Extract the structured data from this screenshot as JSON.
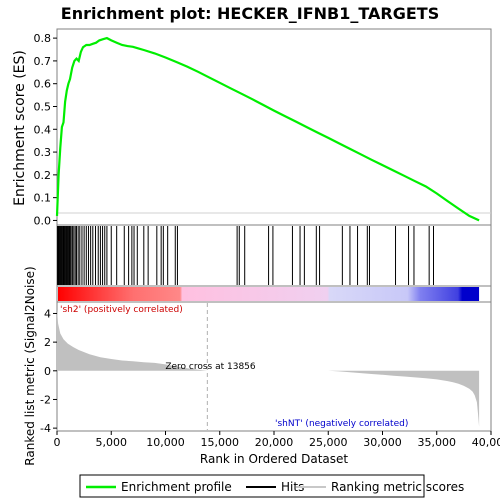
{
  "chart_data": {
    "type": "line",
    "title": "Enrichment plot: HECKER_IFNB1_TARGETS",
    "xlabel": "Rank in Ordered Dataset",
    "top_ylabel": "Enrichment score (ES)",
    "bottom_ylabel": "Ranked list metric (Signal2Noise)",
    "xlim": [
      0,
      40000
    ],
    "x_ticks": [
      0,
      5000,
      10000,
      15000,
      20000,
      25000,
      30000,
      35000,
      40000
    ],
    "x_tick_labels": [
      "0",
      "5,000",
      "10,000",
      "15,000",
      "20,000",
      "25,000",
      "30,000",
      "35,000",
      "40,000"
    ],
    "es_ylim": [
      -0.02,
      0.84
    ],
    "es_ticks": [
      0.0,
      0.1,
      0.2,
      0.3,
      0.4,
      0.5,
      0.6,
      0.7,
      0.8
    ],
    "es_tick_labels": [
      "0.0",
      "0.1",
      "0.2",
      "0.3",
      "0.4",
      "0.5",
      "0.6",
      "0.7",
      "0.8"
    ],
    "metric_ylim": [
      -4.2,
      4.8
    ],
    "metric_ticks": [
      -4,
      -2,
      0,
      2,
      4
    ],
    "metric_tick_labels": [
      "-4",
      "-2",
      "0",
      "2",
      "4"
    ],
    "series": [
      {
        "name": "Enrichment profile",
        "color": "#00ee00",
        "x": [
          0,
          150,
          300,
          450,
          600,
          750,
          900,
          1050,
          1200,
          1400,
          1600,
          1800,
          2000,
          2200,
          2400,
          2700,
          3000,
          3300,
          3600,
          3900,
          4200,
          4600,
          5000,
          5500,
          6000,
          6500,
          7000,
          7500,
          8000,
          9000,
          10000,
          11000,
          12000,
          13000,
          14000,
          15000,
          16000,
          17000,
          18000,
          19000,
          20000,
          21000,
          22000,
          23000,
          24000,
          25000,
          26000,
          27000,
          28000,
          29000,
          30000,
          31000,
          32000,
          33000,
          34000,
          35000,
          36000,
          37000,
          38000,
          38900
        ],
        "y": [
          0.02,
          0.2,
          0.32,
          0.41,
          0.43,
          0.52,
          0.57,
          0.6,
          0.62,
          0.67,
          0.7,
          0.71,
          0.7,
          0.74,
          0.76,
          0.77,
          0.77,
          0.775,
          0.78,
          0.79,
          0.795,
          0.8,
          0.79,
          0.78,
          0.77,
          0.765,
          0.762,
          0.755,
          0.748,
          0.733,
          0.715,
          0.695,
          0.675,
          0.652,
          0.628,
          0.604,
          0.58,
          0.556,
          0.532,
          0.507,
          0.482,
          0.458,
          0.434,
          0.41,
          0.386,
          0.362,
          0.338,
          0.314,
          0.29,
          0.266,
          0.243,
          0.219,
          0.196,
          0.172,
          0.149,
          0.118,
          0.085,
          0.052,
          0.02,
          0.0
        ]
      }
    ],
    "hits": [
      50,
      120,
      180,
      260,
      330,
      400,
      470,
      560,
      640,
      720,
      800,
      880,
      960,
      1040,
      1120,
      1200,
      1300,
      1420,
      1550,
      1680,
      1800,
      1950,
      2100,
      2300,
      2500,
      2700,
      2900,
      3100,
      3300,
      3550,
      3800,
      4000,
      4200,
      4400,
      4600,
      5000,
      5500,
      6200,
      6600,
      6900,
      7100,
      7400,
      8000,
      8400,
      9200,
      9600,
      9800,
      10200,
      10900,
      11100,
      16600,
      16800,
      17300,
      19500,
      19900,
      21700,
      22400,
      22800,
      23900,
      24200,
      26300,
      27000,
      27700,
      28600,
      28800,
      31200,
      32400,
      32900,
      34300,
      34700
    ],
    "metric": {
      "x": [
        0,
        100,
        300,
        600,
        1000,
        1500,
        2000,
        3000,
        4000,
        5000,
        6000,
        7000,
        8000,
        9000,
        10000,
        11000,
        12000,
        13000,
        13856,
        15000,
        20000,
        25000,
        26000,
        27000,
        28000,
        29000,
        30000,
        31000,
        32000,
        33000,
        34000,
        35000,
        36000,
        36500,
        37000,
        37500,
        38000,
        38300,
        38500,
        38700,
        38800,
        38900
      ],
      "y": [
        4.3,
        3.3,
        2.6,
        2.2,
        1.9,
        1.65,
        1.45,
        1.15,
        0.95,
        0.82,
        0.72,
        0.66,
        0.6,
        0.55,
        0.45,
        0.3,
        0.18,
        0.08,
        0.0,
        0.0,
        0.0,
        0.0,
        -0.04,
        -0.1,
        -0.16,
        -0.22,
        -0.28,
        -0.34,
        -0.4,
        -0.46,
        -0.52,
        -0.6,
        -0.72,
        -0.8,
        -0.9,
        -1.05,
        -1.25,
        -1.45,
        -1.7,
        -2.2,
        -3.0,
        -3.9
      ]
    },
    "zero_cross": {
      "x": 13856,
      "label": "Zero cross at 13856"
    },
    "pos_label": "'sh2' (positively correlated)",
    "neg_label": "'shNT' (negatively correlated)",
    "colors": {
      "es_line": "#00ee00",
      "hits": "#000000",
      "metric_fill": "#c0c0c0",
      "pos_label": "#cc0000",
      "neg_label": "#0000cc",
      "zero_cross_line": "#b0b0b0"
    }
  },
  "legend": {
    "items": [
      {
        "label": "Enrichment profile",
        "color": "#00ee00",
        "kind": "line"
      },
      {
        "label": "Hits",
        "color": "#000000",
        "kind": "line"
      },
      {
        "label": "Ranking metric scores",
        "color": "#c8c8c8",
        "kind": "line"
      }
    ]
  }
}
